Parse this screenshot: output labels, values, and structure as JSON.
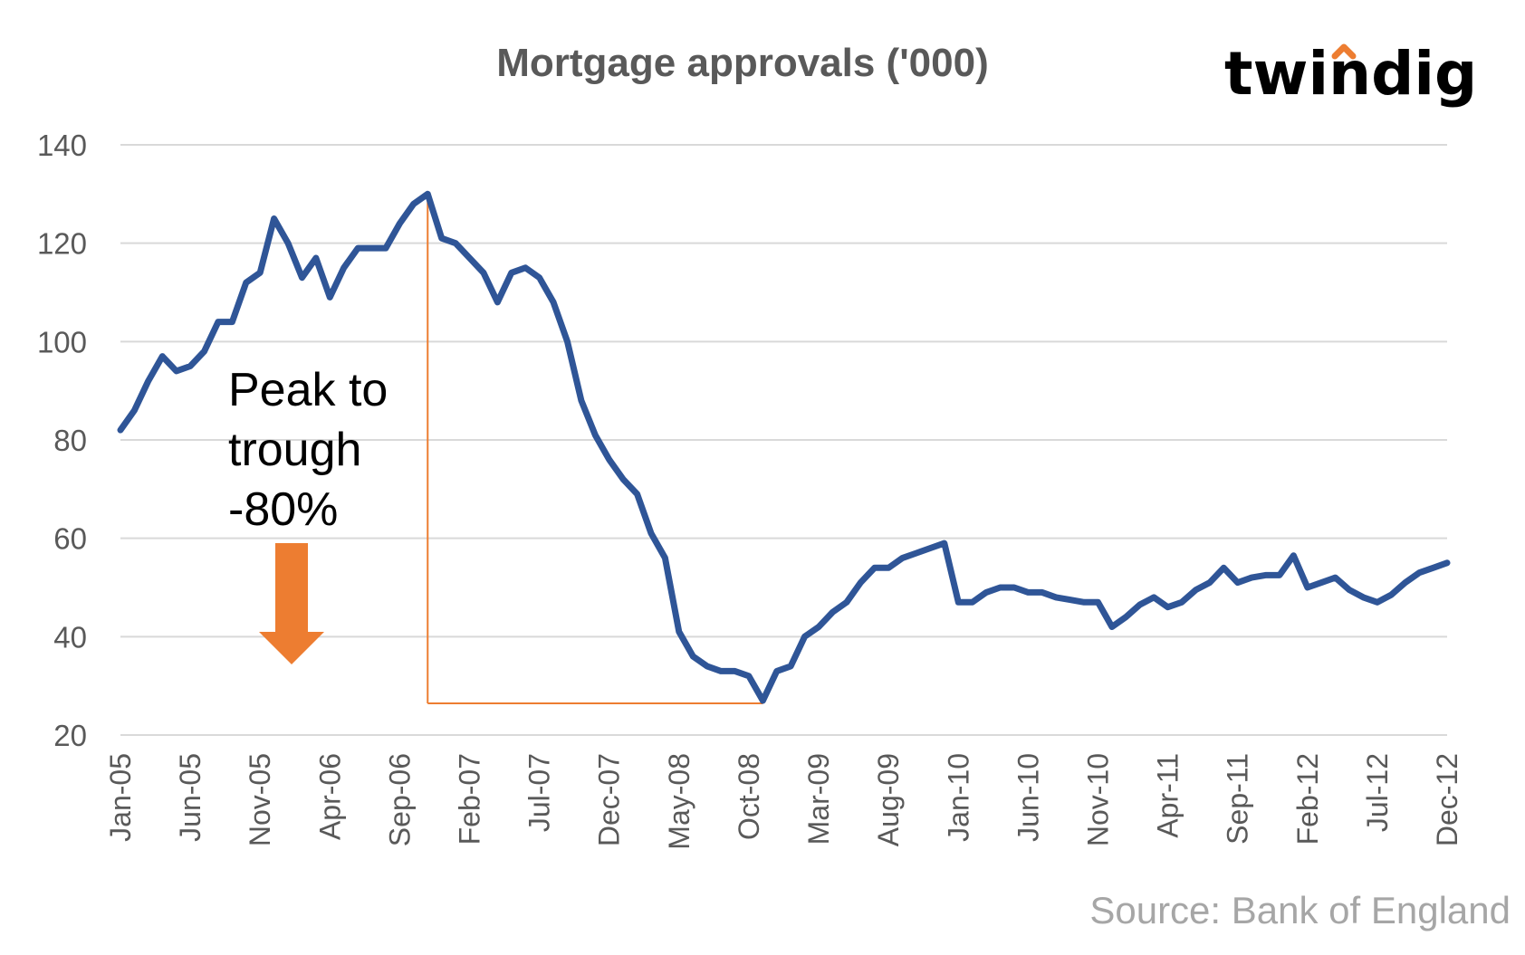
{
  "chart_data": {
    "type": "line",
    "title": "Mortgage approvals ('000)",
    "xlabel": "",
    "ylabel": "",
    "ylim": [
      20,
      140
    ],
    "yticks": [
      "20",
      "40",
      "60",
      "80",
      "100",
      "120",
      "140"
    ],
    "grid": true,
    "x_tick_labels": [
      "Jan-05",
      "Jun-05",
      "Nov-05",
      "Apr-06",
      "Sep-06",
      "Feb-07",
      "Jul-07",
      "Dec-07",
      "May-08",
      "Oct-08",
      "Mar-09",
      "Aug-09",
      "Jan-10",
      "Jun-10",
      "Nov-10",
      "Apr-11",
      "Sep-11",
      "Feb-12",
      "Jul-12",
      "Dec-12"
    ],
    "series": [
      {
        "name": "Mortgage approvals",
        "color": "#2f5597",
        "values": [
          82,
          86,
          92,
          97,
          94,
          95,
          98,
          104,
          104,
          112,
          114,
          125,
          120,
          113,
          117,
          109,
          115,
          119,
          119,
          119,
          124,
          128,
          130,
          121,
          120,
          117,
          114,
          108,
          114,
          115,
          113,
          108,
          100,
          88,
          81,
          76,
          72,
          69,
          61,
          56,
          41,
          36,
          34,
          33,
          33,
          32,
          27,
          33,
          34,
          40,
          42,
          45,
          47,
          51,
          54,
          54,
          56,
          57,
          58,
          59,
          47,
          47,
          49,
          50,
          50,
          49,
          49,
          48,
          47.5,
          47,
          47,
          42,
          44,
          46.5,
          48,
          46,
          47,
          49.5,
          51,
          54,
          51,
          52,
          52.5,
          52.5,
          56.5,
          50,
          51,
          52,
          49.5,
          48,
          47,
          48.5,
          51,
          53,
          54,
          55
        ]
      }
    ],
    "annotations": {
      "peak_to_trough_lines": [
        "Peak to",
        "trough",
        "-80%"
      ],
      "peak_index": 22,
      "trough_index": 46,
      "bracket_color": "#ed7d31",
      "arrow_color": "#ed7d31"
    },
    "source": "Source: Bank of England"
  },
  "logo": {
    "text": "twindig",
    "color": "#2d2146",
    "accent_color": "#ed7d31"
  }
}
